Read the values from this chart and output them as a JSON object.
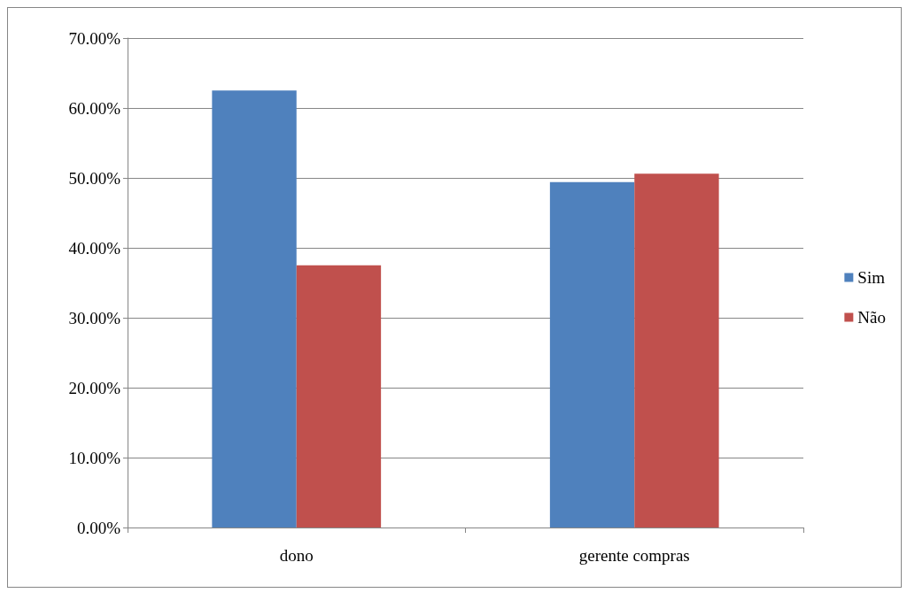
{
  "chart_data": {
    "type": "bar",
    "categories": [
      "dono",
      "gerente compras"
    ],
    "series": [
      {
        "name": "Sim",
        "color": "#4f81bd",
        "values": [
          62.5,
          49.4
        ]
      },
      {
        "name": "Não",
        "color": "#c0504d",
        "values": [
          37.5,
          50.6
        ]
      }
    ],
    "ylim": [
      0,
      70
    ],
    "yticks": [
      {
        "value": 0,
        "label": "0.00%"
      },
      {
        "value": 10,
        "label": "10.00%"
      },
      {
        "value": 20,
        "label": "20.00%"
      },
      {
        "value": 30,
        "label": "30.00%"
      },
      {
        "value": 40,
        "label": "40.00%"
      },
      {
        "value": 50,
        "label": "50.00%"
      },
      {
        "value": 60,
        "label": "60.00%"
      },
      {
        "value": 70,
        "label": "70.00%"
      }
    ],
    "grid": "y",
    "legend": "right"
  }
}
